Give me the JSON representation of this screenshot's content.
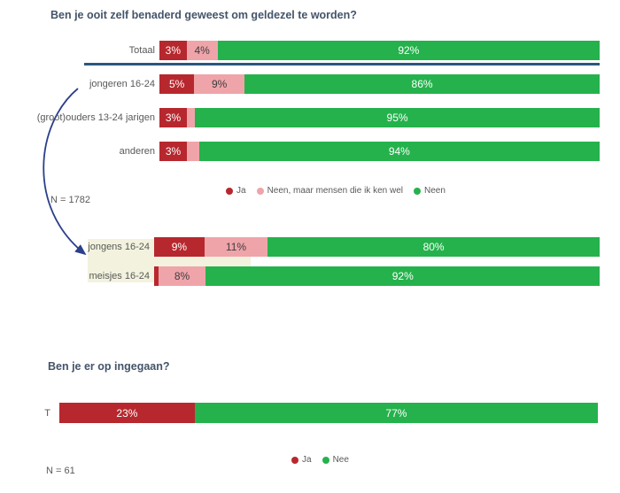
{
  "colors": {
    "ja_red": "#B7282E",
    "neen_maar_pink": "#EFA4AA",
    "neen_green": "#25B24C",
    "title_text": "#44546A",
    "label_text": "#595959",
    "divider_blue": "#2A567F",
    "arrow_blue": "#2B3F8A",
    "highlight_beige": "#F2F2DE"
  },
  "chart_data": [
    {
      "type": "bar",
      "orientation": "horizontal",
      "stacked": true,
      "unit": "%",
      "title": "Ben je ooit zelf benaderd geweest om geldezel te worden?",
      "n_label": "N = 1782",
      "legend_position": "bottom-center",
      "categories": [
        "Totaal",
        "jongeren 16-24",
        "(groot)ouders 13-24 jarigen",
        "anderen",
        "jongens 16-24",
        "meisjes 16-24"
      ],
      "series": [
        {
          "name": "Ja",
          "color": "#B7282E",
          "text_color": "#FFFFFF",
          "values": [
            3,
            5,
            3,
            3,
            9,
            1
          ]
        },
        {
          "name": "Neen, maar mensen die ik ken wel",
          "color": "#EFA4AA",
          "text_color": "#3D3D3D",
          "values": [
            4,
            9,
            2,
            3,
            11,
            8
          ]
        },
        {
          "name": "Neen",
          "color": "#25B24C",
          "text_color": "#FFFFFF",
          "values": [
            92,
            86,
            95,
            94,
            80,
            92
          ]
        }
      ],
      "bar_labels": [
        [
          "3%",
          "4%",
          "92%"
        ],
        [
          "5%",
          "9%",
          "86%"
        ],
        [
          "3%",
          "",
          "95%"
        ],
        [
          "3%",
          "",
          "94%"
        ],
        [
          "9%",
          "11%",
          "80%"
        ],
        [
          "",
          "8%",
          "92%"
        ]
      ],
      "annotations": {
        "divider_after": "Totaal",
        "highlighted_category": "jongens 16-24",
        "arrow": "curved arrow from 'jongeren 16-24' label down to 'jongens 16-24' label"
      }
    },
    {
      "type": "bar",
      "orientation": "horizontal",
      "stacked": true,
      "unit": "%",
      "title": "Ben je er op ingegaan?",
      "n_label": "N = 61",
      "legend_position": "bottom-center",
      "categories": [
        "T"
      ],
      "series": [
        {
          "name": "Ja",
          "color": "#B7282E",
          "text_color": "#FFFFFF",
          "values": [
            23
          ]
        },
        {
          "name": "Nee",
          "color": "#25B24C",
          "text_color": "#FFFFFF",
          "values": [
            77
          ]
        }
      ],
      "bar_labels": [
        [
          "23%",
          "77%"
        ]
      ]
    }
  ]
}
